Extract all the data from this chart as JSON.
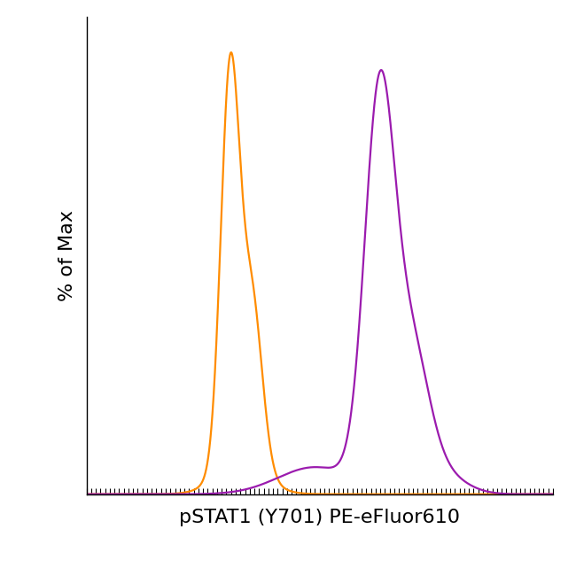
{
  "title": "",
  "xlabel": "pSTAT1 (Y701) PE-eFluor610",
  "ylabel": "% of Max",
  "xlabel_fontsize": 16,
  "ylabel_fontsize": 16,
  "background_color": "#ffffff",
  "plot_bg_color": "#ffffff",
  "orange_color": "#FF8C00",
  "purple_color": "#9B1BAE",
  "linewidth": 1.6,
  "xlim": [
    0,
    1000
  ],
  "ylim": [
    0,
    1.08
  ],
  "figsize": [
    6.5,
    6.41
  ],
  "dpi": 100
}
